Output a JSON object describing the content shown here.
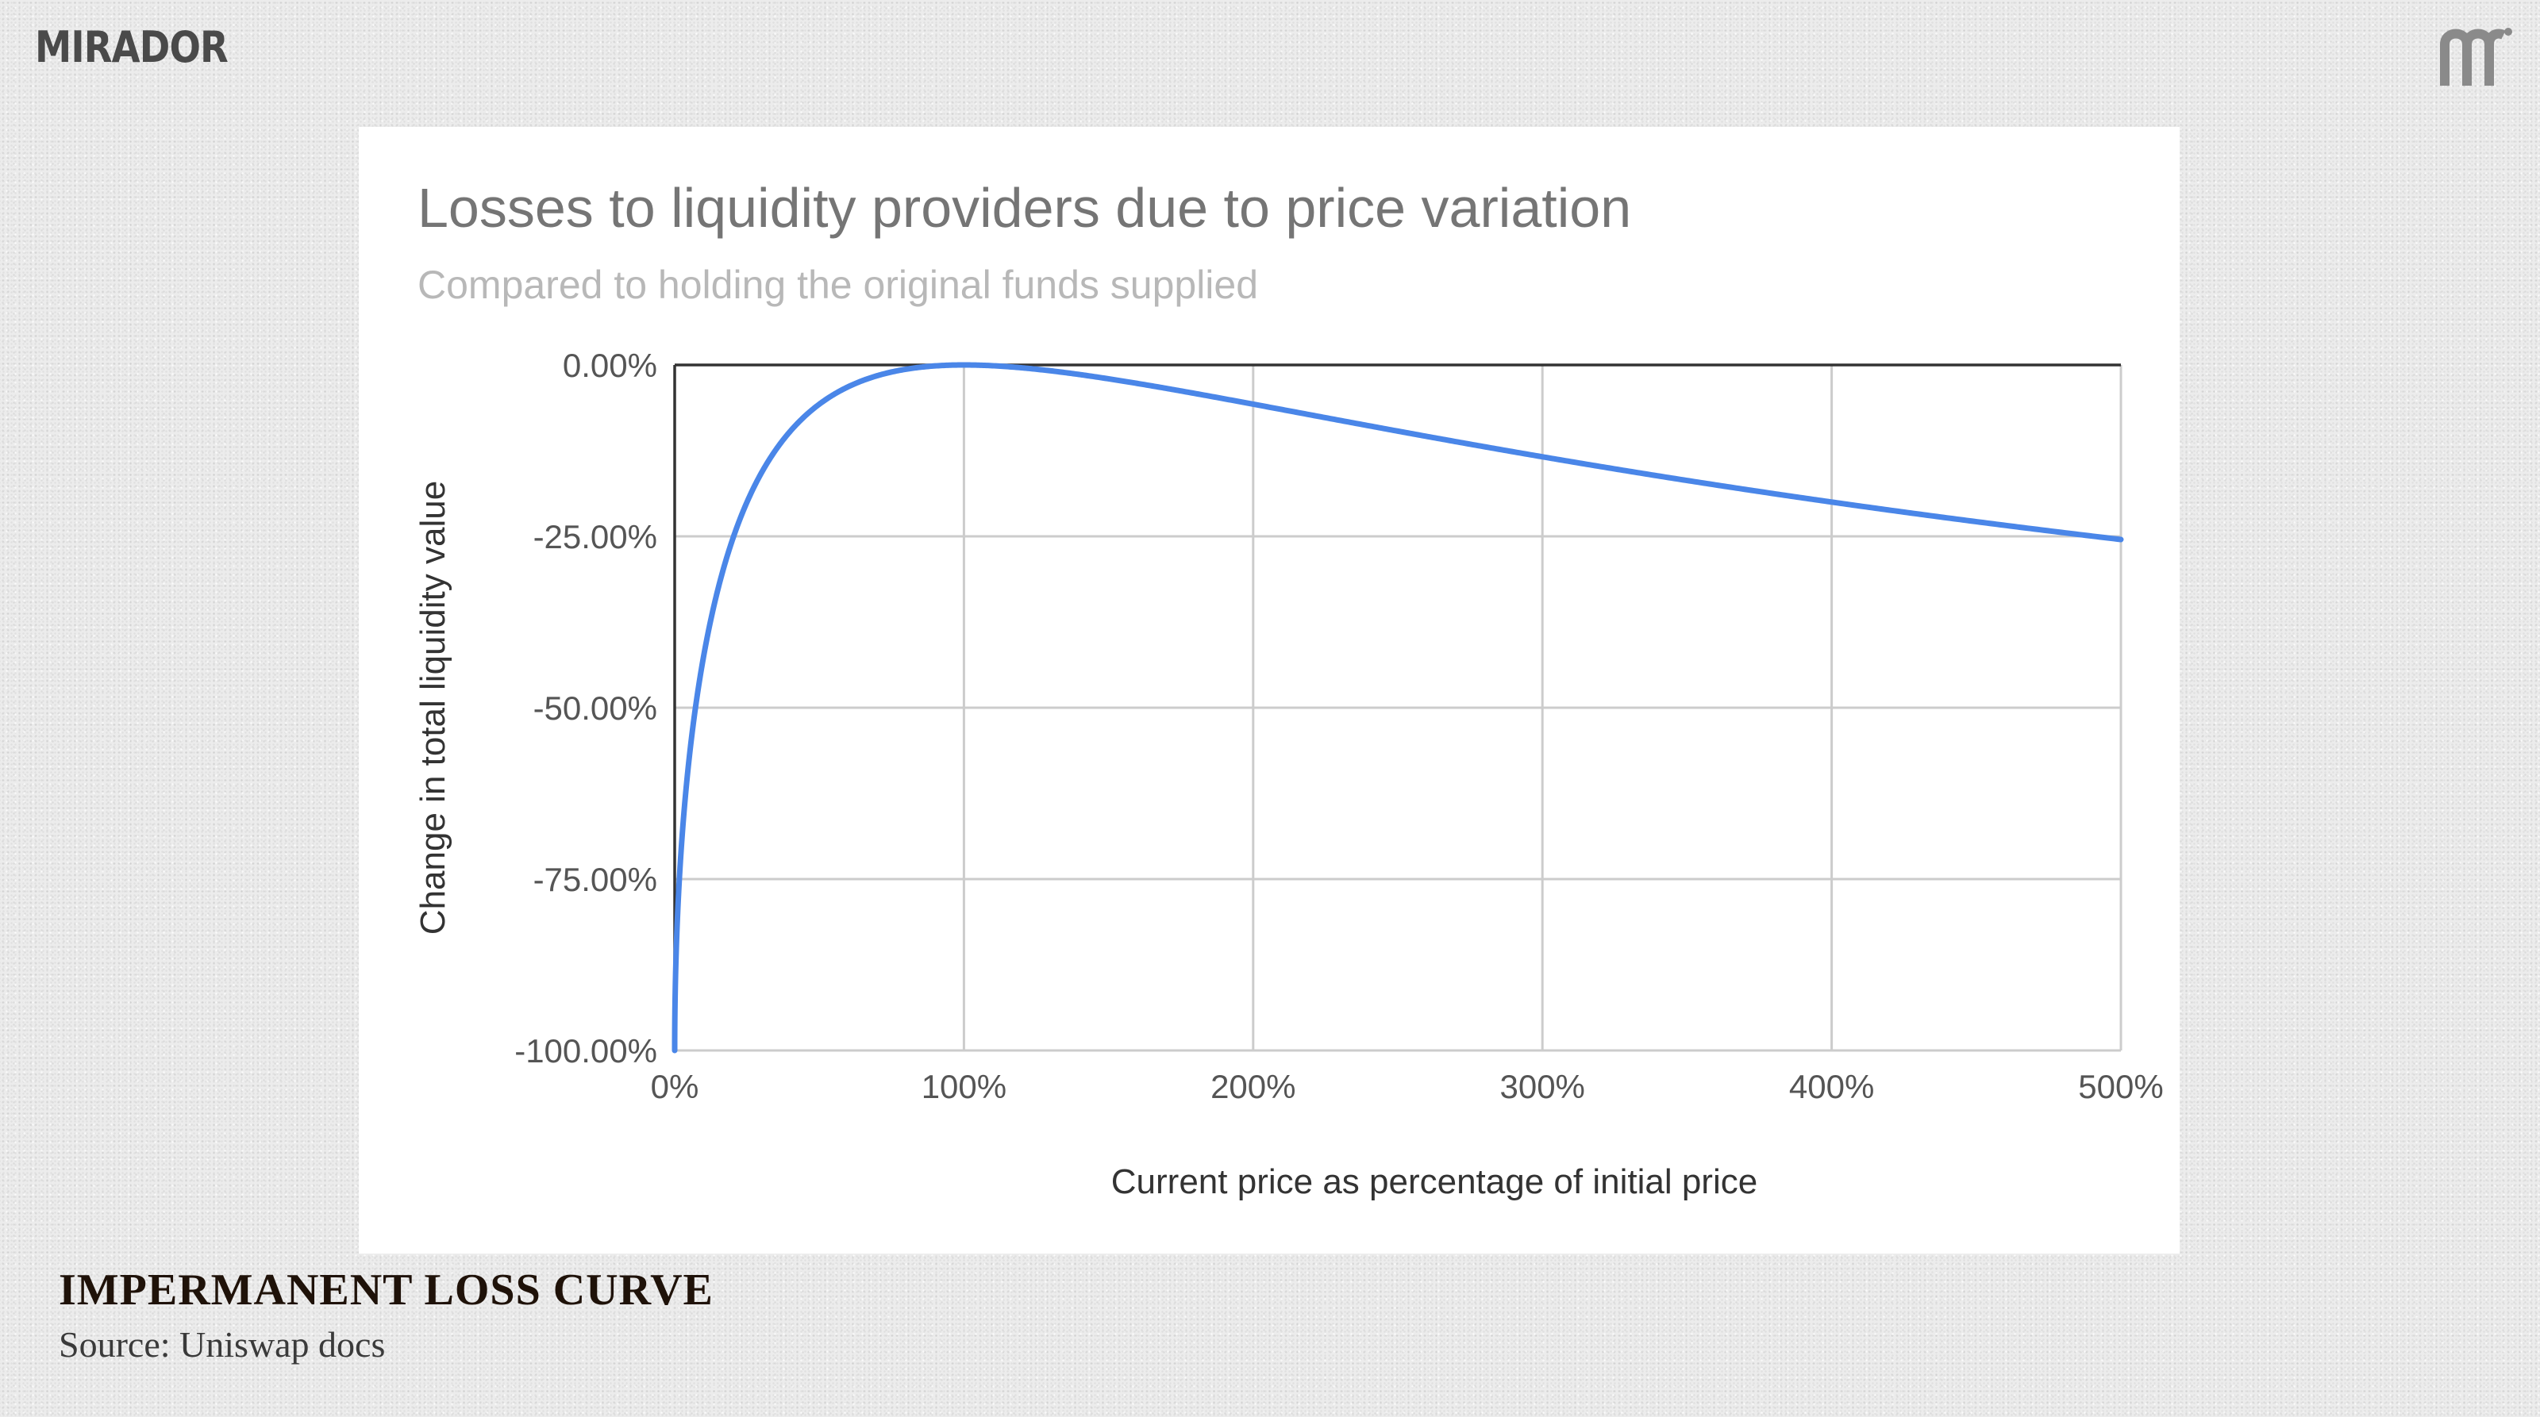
{
  "brand": {
    "name": "MIRADOR",
    "logo_icon": "mirador-m-logo-icon"
  },
  "caption": {
    "title": "IMPERMANENT LOSS CURVE",
    "source": "Source: Uniswap docs"
  },
  "colors": {
    "line": "#4a86e8",
    "grid": "#cccccc",
    "axis": "#333333",
    "text": "#555555"
  },
  "chart_data": {
    "type": "line",
    "title": "Losses to liquidity providers due to price variation",
    "subtitle": "Compared to holding the original funds supplied",
    "xlabel": "Current price as percentage of initial price",
    "ylabel": "Change in total liquidity value",
    "xlim": [
      0,
      500
    ],
    "ylim": [
      -100,
      0
    ],
    "x_ticks": [
      0,
      100,
      200,
      300,
      400,
      500
    ],
    "x_tick_labels": [
      "0%",
      "100%",
      "200%",
      "300%",
      "400%",
      "500%"
    ],
    "y_ticks": [
      0,
      -25,
      -50,
      -75,
      -100
    ],
    "y_tick_labels": [
      "0.00%",
      "-25.00%",
      "-50.00%",
      "-75.00%",
      "-100.00%"
    ],
    "grid": true,
    "legend": "none",
    "series": [
      {
        "name": "Impermanent loss",
        "formula": "2*sqrt(r)/(1+r) - 1, r = price/100",
        "x": [
          0,
          0.5,
          1,
          2,
          3,
          5,
          7.5,
          10,
          15,
          20,
          25,
          30,
          40,
          50,
          60,
          70,
          80,
          90,
          100,
          125,
          150,
          175,
          200,
          250,
          300,
          350,
          400,
          450,
          500
        ],
        "values": [
          -100,
          -86.0,
          -80.3,
          -72.3,
          -66.4,
          -57.4,
          -49.1,
          -42.5,
          -32.7,
          -25.5,
          -20.0,
          -15.7,
          -9.7,
          -5.7,
          -3.2,
          -1.6,
          -0.6,
          -0.1,
          0,
          -0.6,
          -2.0,
          -3.8,
          -5.7,
          -9.6,
          -13.4,
          -16.8,
          -20.0,
          -22.9,
          -25.5
        ]
      }
    ]
  }
}
